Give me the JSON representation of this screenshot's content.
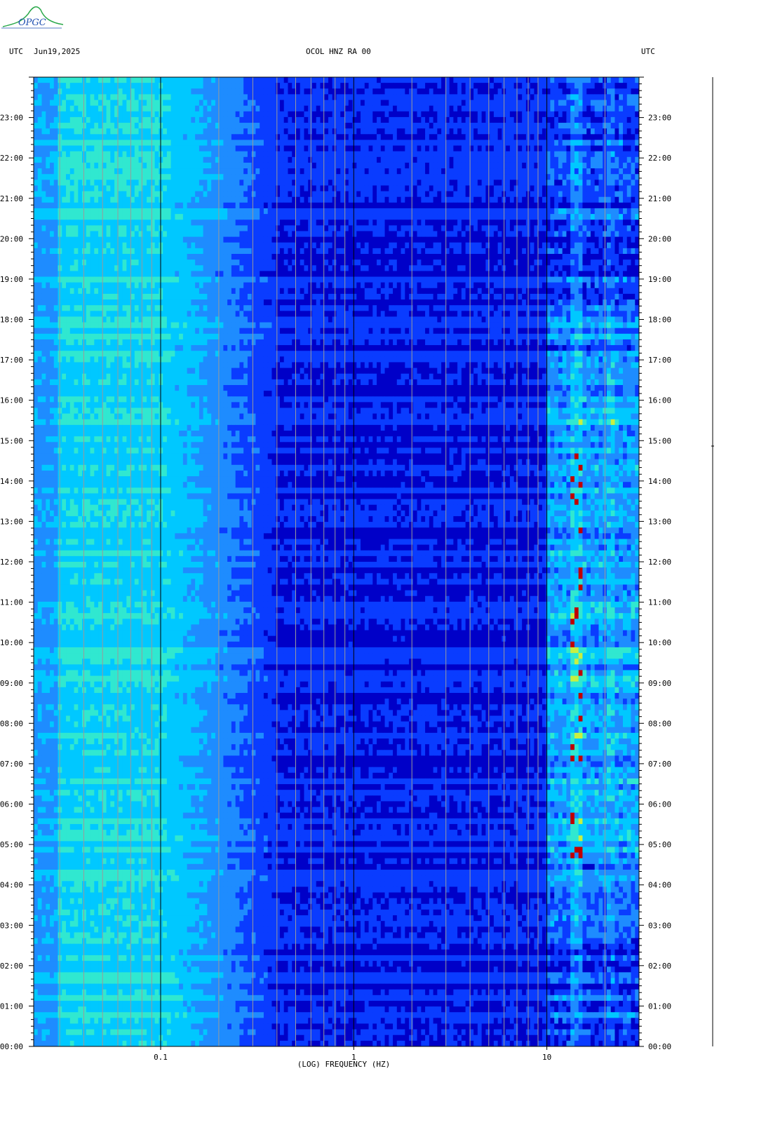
{
  "logo": {
    "text": "OPGC",
    "color": "#1f4fb0",
    "accent": "#2aa84a"
  },
  "header": {
    "left_tz": "UTC",
    "date": "Jun19,2025",
    "station": "OCOL HNZ RA 00",
    "right_tz": "UTC"
  },
  "chart_data": {
    "type": "heatmap",
    "title": "OCOL HNZ RA 00",
    "date": "Jun19,2025",
    "xlabel": "(LOG) FREQUENCY (HZ)",
    "x_scale": "log",
    "xlim_hz": [
      0.022,
      30
    ],
    "x_ticks": [
      {
        "value": 0.1,
        "label": "0.1"
      },
      {
        "value": 1,
        "label": "1"
      },
      {
        "value": 10,
        "label": "10"
      }
    ],
    "y_ticks_left": [
      "23:00",
      "22:00",
      "21:00",
      "20:00",
      "19:00",
      "18:00",
      "17:00",
      "16:00",
      "15:00",
      "14:00",
      "13:00",
      "12:00",
      "11:00",
      "10:00",
      "09:00",
      "08:00",
      "07:00",
      "06:00",
      "05:00",
      "04:00",
      "03:00",
      "02:00",
      "01:00",
      "00:00"
    ],
    "y_ticks_right": [
      "23:00",
      "22:00",
      "21:00",
      "20:00",
      "19:00",
      "18:00",
      "17:00",
      "16:00",
      "15:00",
      "14:00",
      "13:00",
      "12:00",
      "11:00",
      "10:00",
      "09:00",
      "08:00",
      "07:00",
      "06:00",
      "05:00",
      "04:00",
      "03:00",
      "02:00",
      "01:00",
      "00:00"
    ],
    "y_range_hours": [
      0,
      24
    ],
    "colormap": [
      "#0000c8",
      "#0a3cff",
      "#1e8cff",
      "#00c8ff",
      "#30e8d0",
      "#c8f040",
      "#ffd000",
      "#ff4000",
      "#c00000"
    ],
    "features": [
      {
        "freq_range_hz": [
          0.022,
          0.1
        ],
        "level": "high",
        "hours": [
          0,
          24
        ]
      },
      {
        "freq_range_hz": [
          0.1,
          0.4
        ],
        "level": "medium",
        "hours": [
          0,
          24
        ]
      },
      {
        "freq_range_hz": [
          0.4,
          10
        ],
        "level": "low",
        "hours": [
          0,
          24
        ]
      },
      {
        "freq_range_hz": [
          10,
          30
        ],
        "level": "intense",
        "hours": [
          4.5,
          17
        ]
      },
      {
        "freq_range_hz": [
          10,
          30
        ],
        "level": "moderate",
        "hours": [
          2.7,
          4.5
        ]
      },
      {
        "freq_range_hz": [
          10,
          30
        ],
        "level": "moderate",
        "hours": [
          17,
          18.5
        ]
      }
    ]
  }
}
